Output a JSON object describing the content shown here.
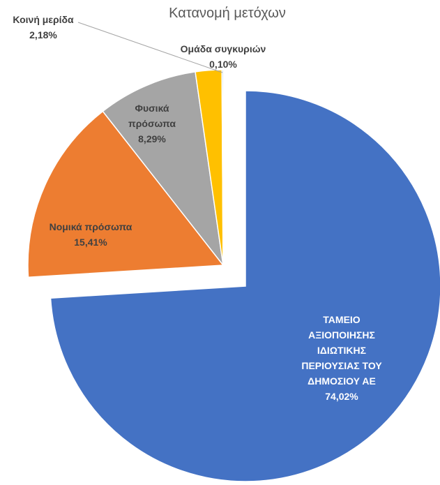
{
  "chart_data": {
    "type": "pie",
    "title": "Κατανομή μετόχων",
    "categories": [
      "ΤΑΜΕΙΟ ΑΞΙΟΠΟΙΗΣΗΣ ΙΔΙΩΤΙΚΗΣ ΠΕΡΙΟΥΣΙΑΣ ΤΟΥ ΔΗΜΟΣΙΟΥ ΑΕ",
      "Νομικά πρόσωπα",
      "Φυσικά πρόσωπα",
      "Κοινή μερίδα",
      "Ομάδα συγκυριών"
    ],
    "values": [
      74.02,
      15.41,
      8.29,
      2.18,
      0.1
    ],
    "value_labels": [
      "74,02%",
      "15,41%",
      "8,29%",
      "2,18%",
      "0,10%"
    ],
    "colors": [
      "#4472c4",
      "#ed7d31",
      "#a5a5a5",
      "#ffc000",
      "#5b9bd5"
    ]
  }
}
